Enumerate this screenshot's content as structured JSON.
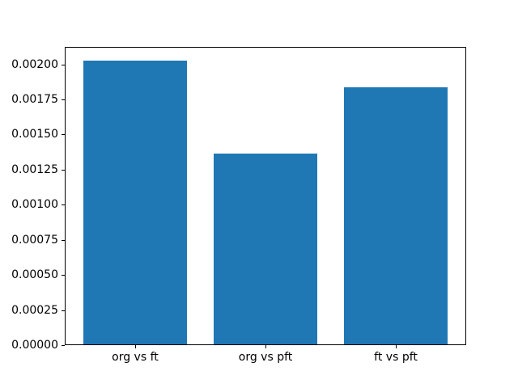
{
  "chart_data": {
    "type": "bar",
    "title": "",
    "xlabel": "",
    "ylabel": "",
    "categories": [
      "org vs ft",
      "org vs pft",
      "ft vs pft"
    ],
    "x": [
      0,
      1,
      2
    ],
    "values": [
      0.00202,
      0.00136,
      0.00183
    ],
    "bar_width": 0.8,
    "bar_color": "#1f77b4",
    "xlim": [
      -0.54,
      2.54
    ],
    "ylim": [
      0,
      0.002124
    ],
    "yticks": [
      0.0,
      0.00025,
      0.0005,
      0.00075,
      0.001,
      0.00125,
      0.0015,
      0.00175,
      0.002
    ],
    "ytick_labels": [
      "0.00000",
      "0.00025",
      "0.00050",
      "0.00075",
      "0.00100",
      "0.00125",
      "0.00150",
      "0.00175",
      "0.00200"
    ],
    "grid": false,
    "legend": null,
    "background_color": "#ffffff",
    "spine_color": "#000000"
  }
}
